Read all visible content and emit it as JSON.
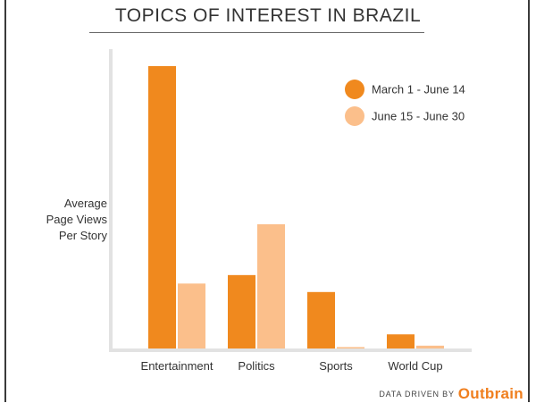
{
  "chart_data": {
    "type": "bar",
    "title": "TOPICS OF INTEREST IN BRAZIL",
    "ylabel": [
      "Average",
      "Page Views",
      "Per Story"
    ],
    "categories": [
      "Entertainment",
      "Politics",
      "Sports",
      "World Cup"
    ],
    "series": [
      {
        "name": "March 1 - June 14",
        "color": "#f0891e",
        "values": [
          100,
          26,
          20,
          5
        ]
      },
      {
        "name": "June 15 - June 30",
        "color": "#fbbf8b",
        "values": [
          23,
          44,
          0.5,
          1
        ]
      }
    ],
    "ylim": [
      0,
      100
    ],
    "grid": false,
    "legend": "top-right"
  },
  "credit": {
    "prefix": "DATA DRIVEN BY",
    "brand": "Outbrain"
  },
  "colors": {
    "axis": "#e2e2e2",
    "frame": "#3a3a3a",
    "brand": "#f07f1e"
  }
}
